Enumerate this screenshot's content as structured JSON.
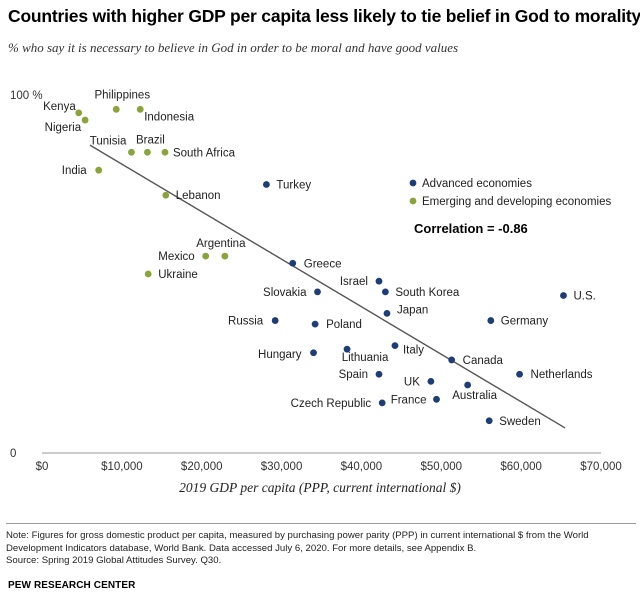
{
  "chart_data": {
    "type": "scatter",
    "title": "Countries with higher GDP per capita less likely to tie belief in God to morality",
    "subtitle": "% who say it is necessary to believe in God in order to be moral and have good values",
    "xlabel": "2019 GDP per capita (PPP, current international $)",
    "ylabel": "",
    "xlim": [
      0,
      70000
    ],
    "ylim": [
      0,
      100
    ],
    "x_ticks": [
      "$0",
      "$10,000",
      "$20,000",
      "$30,000",
      "$40,000",
      "$50,000",
      "$60,000",
      "$70,000"
    ],
    "x_tick_values": [
      0,
      10000,
      20000,
      30000,
      40000,
      50000,
      60000,
      70000
    ],
    "y_ticks": [
      "100 %",
      "0"
    ],
    "y_tick_values": [
      100,
      0
    ],
    "grid": false,
    "legend_position": "top-right",
    "correlation_label": "Correlation = -0.86",
    "trendline": {
      "x": [
        6000,
        65500
      ],
      "y": [
        86,
        7
      ]
    },
    "series": [
      {
        "name": "Advanced economies",
        "color": "#1d3c78",
        "points": [
          {
            "label": "Turkey",
            "x": 28100,
            "y": 75
          },
          {
            "label": "Greece",
            "x": 31400,
            "y": 53
          },
          {
            "label": "Israel",
            "x": 42200,
            "y": 48
          },
          {
            "label": "South Korea",
            "x": 43000,
            "y": 45
          },
          {
            "label": "Slovakia",
            "x": 34500,
            "y": 45
          },
          {
            "label": "U.S.",
            "x": 65300,
            "y": 44
          },
          {
            "label": "Japan",
            "x": 43200,
            "y": 39
          },
          {
            "label": "Germany",
            "x": 56200,
            "y": 37
          },
          {
            "label": "Russia",
            "x": 29200,
            "y": 37
          },
          {
            "label": "Poland",
            "x": 34200,
            "y": 36
          },
          {
            "label": "Italy",
            "x": 44200,
            "y": 30
          },
          {
            "label": "Lithuania",
            "x": 38200,
            "y": 29
          },
          {
            "label": "Hungary",
            "x": 34000,
            "y": 28
          },
          {
            "label": "Canada",
            "x": 51300,
            "y": 26
          },
          {
            "label": "Spain",
            "x": 42200,
            "y": 22
          },
          {
            "label": "Netherlands",
            "x": 59800,
            "y": 22
          },
          {
            "label": "UK",
            "x": 48700,
            "y": 20
          },
          {
            "label": "Australia",
            "x": 53300,
            "y": 19
          },
          {
            "label": "France",
            "x": 49400,
            "y": 15
          },
          {
            "label": "Czech Republic",
            "x": 42600,
            "y": 14
          },
          {
            "label": "Sweden",
            "x": 56000,
            "y": 9
          }
        ]
      },
      {
        "name": "Emerging and developing economies",
        "color": "#8aa33b",
        "points": [
          {
            "label": "Philippines",
            "x": 9300,
            "y": 96
          },
          {
            "label": "Indonesia",
            "x": 12300,
            "y": 96
          },
          {
            "label": "Kenya",
            "x": 4600,
            "y": 95
          },
          {
            "label": "Nigeria",
            "x": 5400,
            "y": 93
          },
          {
            "label": "Tunisia",
            "x": 11200,
            "y": 84
          },
          {
            "label": "Brazil",
            "x": 13200,
            "y": 84
          },
          {
            "label": "South Africa",
            "x": 15400,
            "y": 84
          },
          {
            "label": "India",
            "x": 7100,
            "y": 79
          },
          {
            "label": "Lebanon",
            "x": 15500,
            "y": 72
          },
          {
            "label": "Argentina",
            "x": 22900,
            "y": 55
          },
          {
            "label": "Mexico",
            "x": 20500,
            "y": 55
          },
          {
            "label": "Ukraine",
            "x": 13300,
            "y": 50
          }
        ]
      }
    ],
    "point_labels": {
      "Kenya": [
        "left",
        -3,
        -3
      ],
      "Philippines": [
        "center",
        6,
        -11
      ],
      "Indonesia": [
        "right",
        4,
        11
      ],
      "Nigeria": [
        "left",
        -4,
        11
      ],
      "Tunisia": [
        "left",
        -5,
        -8
      ],
      "Brazil": [
        "center",
        3,
        -9
      ],
      "South Africa": [
        "right",
        8,
        4
      ],
      "India": [
        "left",
        -12,
        4
      ],
      "Lebanon": [
        "right",
        10,
        4
      ],
      "Turkey": [
        "right",
        10,
        4
      ],
      "Greece": [
        "right",
        11,
        4
      ],
      "Argentina": [
        "center",
        -4,
        -9
      ],
      "Mexico": [
        "left",
        -11,
        4
      ],
      "Bulgaria": [
        "right",
        10,
        5
      ],
      "Ukraine": [
        "right",
        10,
        4
      ],
      "Israel": [
        "left",
        -11,
        4
      ],
      "South Korea": [
        "right",
        10,
        4
      ],
      "Slovakia": [
        "left",
        -11,
        4
      ],
      "U.S.": [
        "right",
        10,
        4
      ],
      "Japan": [
        "right",
        10,
        0
      ],
      "Germany": [
        "right",
        10,
        4
      ],
      "Russia": [
        "left",
        -12,
        4
      ],
      "Poland": [
        "right",
        11,
        4
      ],
      "Italy": [
        "right",
        8,
        8
      ],
      "Lithuania": [
        "center",
        18,
        12
      ],
      "Hungary": [
        "left",
        -12,
        5
      ],
      "Canada": [
        "right",
        11,
        4
      ],
      "Spain": [
        "left",
        -11,
        4
      ],
      "Netherlands": [
        "right",
        11,
        4
      ],
      "UK": [
        "left",
        -11,
        4
      ],
      "Australia": [
        "center",
        7,
        14
      ],
      "France": [
        "left",
        -10,
        4
      ],
      "Czech Republic": [
        "left",
        -11,
        4
      ],
      "Sweden": [
        "right",
        10,
        4
      ]
    }
  },
  "notes": {
    "note": "Note: Figures for gross domestic product per capita, measured by purchasing power parity (PPP) in current international $ from the World Development Indicators database, World Bank. Data accessed July 6, 2020. For more details, see Appendix B.",
    "source": "Source: Spring 2019 Global Attitudes Survey. Q30.",
    "brand": "PEW RESEARCH CENTER"
  }
}
